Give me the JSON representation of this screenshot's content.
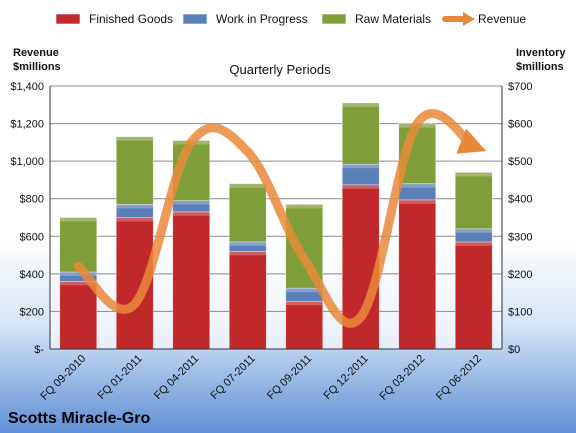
{
  "chart_data": {
    "type": "bar",
    "stacked": true,
    "categories": [
      "FQ 09-2010",
      "FQ 01-2011",
      "FQ 04-2011",
      "FQ 07-2011",
      "FQ 09-2011",
      "FQ 12-2011",
      "FQ 03-2012",
      "FQ 06-2012"
    ],
    "series": [
      {
        "name": "Finished Goods",
        "color": "#c0282b",
        "axis": "right",
        "values": [
          180,
          350,
          365,
          260,
          127,
          437,
          397,
          285
        ]
      },
      {
        "name": "Work in Progress",
        "color": "#5b7fb8",
        "axis": "right",
        "values": [
          25,
          35,
          30,
          25,
          35,
          55,
          43,
          35
        ]
      },
      {
        "name": "Raw Materials",
        "color": "#7f9e3a",
        "axis": "right",
        "values": [
          145,
          180,
          160,
          155,
          223,
          163,
          160,
          150
        ]
      }
    ],
    "line_series": {
      "name": "Revenue",
      "color": "#e8893a",
      "axis": "left",
      "values": [
        440,
        240,
        1100,
        1050,
        480,
        170,
        1200,
        1080
      ]
    },
    "subtitle": "Quarterly Periods",
    "company": "Scotts Miracle-Gro",
    "left_axis": {
      "label_line1": "Revenue",
      "label_line2": "$millions",
      "min": 0,
      "max": 1400,
      "ticks": [
        0,
        200,
        400,
        600,
        800,
        1000,
        1200,
        1400
      ],
      "tick_labels": [
        "$-",
        "$200",
        "$400",
        "$600",
        "$800",
        "$1,000",
        "$1,200",
        "$1,400"
      ]
    },
    "right_axis": {
      "label_line1": "Inventory",
      "label_line2": "$millions",
      "min": 0,
      "max": 700,
      "ticks": [
        0,
        100,
        200,
        300,
        400,
        500,
        600,
        700
      ],
      "tick_labels": [
        "$0",
        "$100",
        "$200",
        "$300",
        "$400",
        "$500",
        "$600",
        "$700"
      ]
    },
    "legend": [
      "Finished Goods",
      "Work in Progress",
      "Raw Materials",
      "Revenue"
    ],
    "legend_position": "top",
    "grid": true
  }
}
